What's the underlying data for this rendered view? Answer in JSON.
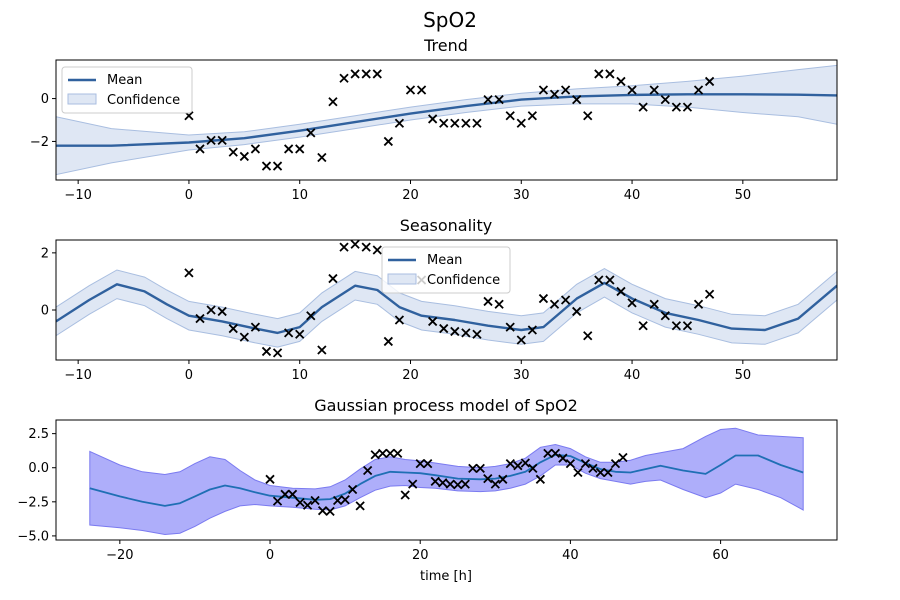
{
  "suptitle": "SpO2",
  "chart_data": [
    {
      "type": "line",
      "title": "Trend",
      "xlabel": "",
      "ylabel": "",
      "xlim": [
        -12,
        58.5
      ],
      "ylim": [
        -3.8,
        1.8
      ],
      "xticks": [
        -10,
        0,
        10,
        20,
        30,
        40,
        50
      ],
      "yticks": [
        -2,
        0
      ],
      "legend": {
        "position": "upper-left",
        "entries": [
          "Mean",
          "Confidence"
        ]
      },
      "grid": false,
      "colors": {
        "mean": "#30619e",
        "band_fill": "#dfe7f4",
        "band_edge": "#a9bee0",
        "points": "#000000"
      },
      "mean": {
        "x": [
          -12,
          -7,
          0,
          5,
          10,
          15,
          20,
          25,
          30,
          35,
          40,
          45,
          50,
          55,
          58.5
        ],
        "y": [
          -2.2,
          -2.2,
          -2.05,
          -1.85,
          -1.5,
          -1.1,
          -0.7,
          -0.35,
          -0.05,
          0.1,
          0.17,
          0.2,
          0.2,
          0.18,
          0.15
        ]
      },
      "band_upper": {
        "x": [
          -12,
          -7,
          0,
          5,
          10,
          15,
          20,
          25,
          30,
          35,
          40,
          45,
          50,
          55,
          58.5
        ],
        "y": [
          -0.85,
          -1.4,
          -1.7,
          -1.55,
          -1.2,
          -0.8,
          -0.4,
          -0.05,
          0.25,
          0.45,
          0.6,
          0.8,
          1.05,
          1.35,
          1.55
        ]
      },
      "band_lower": {
        "x": [
          -12,
          -7,
          0,
          5,
          10,
          15,
          20,
          25,
          30,
          35,
          40,
          45,
          50,
          55,
          58.5
        ],
        "y": [
          -3.55,
          -3.0,
          -2.4,
          -2.15,
          -1.8,
          -1.4,
          -1.0,
          -0.65,
          -0.35,
          -0.25,
          -0.25,
          -0.4,
          -0.65,
          -0.85,
          -1.2
        ]
      },
      "points": {
        "x": [
          0,
          1,
          2,
          3,
          4,
          5,
          6,
          7,
          8,
          9,
          10,
          11,
          12,
          13,
          14,
          15,
          16,
          17,
          18,
          19,
          20,
          21,
          22,
          23,
          24,
          25,
          26,
          27,
          28,
          29,
          30,
          31,
          32,
          33,
          34,
          35,
          36,
          37,
          38,
          39,
          40,
          41,
          42,
          43,
          44,
          45,
          46,
          47
        ],
        "y": [
          -0.8,
          -2.35,
          -1.95,
          -1.95,
          -2.5,
          -2.7,
          -2.35,
          -3.15,
          -3.15,
          -2.35,
          -2.35,
          -1.6,
          -2.75,
          -0.15,
          0.95,
          1.15,
          1.15,
          1.15,
          -2.0,
          -1.15,
          0.4,
          0.4,
          -0.95,
          -1.15,
          -1.15,
          -1.15,
          -1.15,
          -0.05,
          -0.05,
          -0.8,
          -1.15,
          -0.8,
          0.4,
          0.2,
          0.4,
          -0.05,
          -0.8,
          1.15,
          1.15,
          0.8,
          0.4,
          -0.4,
          0.4,
          -0.05,
          -0.4,
          -0.4,
          0.4,
          0.8
        ]
      }
    },
    {
      "type": "line",
      "title": "Seasonality",
      "xlabel": "",
      "ylabel": "",
      "xlim": [
        -12,
        58.5
      ],
      "ylim": [
        -1.75,
        2.45
      ],
      "xticks": [
        -10,
        0,
        10,
        20,
        30,
        40,
        50
      ],
      "yticks": [
        0,
        2
      ],
      "legend": {
        "position": "upper-center",
        "entries": [
          "Mean",
          "Confidence"
        ]
      },
      "grid": false,
      "colors": {
        "mean": "#30619e",
        "band_fill": "#dfe7f4",
        "band_edge": "#a9bee0",
        "points": "#000000"
      },
      "mean": {
        "x": [
          -12,
          -9,
          -6.5,
          -4,
          -2,
          0,
          3,
          6,
          8,
          10,
          12,
          15,
          17,
          19,
          21,
          24,
          27,
          30,
          32,
          35,
          37.5,
          40,
          43,
          46,
          49,
          52,
          55,
          58.5
        ],
        "y": [
          -0.4,
          0.35,
          0.9,
          0.65,
          0.2,
          -0.2,
          -0.4,
          -0.65,
          -0.8,
          -0.6,
          0.1,
          0.85,
          0.7,
          0.1,
          -0.2,
          -0.35,
          -0.55,
          -0.7,
          -0.6,
          0.4,
          0.95,
          0.4,
          -0.1,
          -0.35,
          -0.65,
          -0.7,
          -0.3,
          0.85
        ]
      },
      "band_halfwidth": 0.5,
      "points": {
        "x": [
          0,
          1,
          2,
          3,
          4,
          5,
          6,
          7,
          8,
          9,
          10,
          11,
          12,
          13,
          14,
          15,
          16,
          17,
          18,
          19,
          20,
          21,
          22,
          23,
          24,
          25,
          26,
          27,
          28,
          29,
          30,
          31,
          32,
          33,
          34,
          35,
          36,
          37,
          38,
          39,
          40,
          41,
          42,
          43,
          44,
          45,
          46,
          47
        ],
        "y": [
          1.3,
          -0.3,
          0.0,
          -0.05,
          -0.65,
          -0.95,
          -0.6,
          -1.45,
          -1.5,
          -0.8,
          -0.85,
          -0.2,
          -1.4,
          1.1,
          2.2,
          2.3,
          2.2,
          2.1,
          -1.1,
          -0.35,
          1.05,
          1.05,
          -0.4,
          -0.65,
          -0.75,
          -0.8,
          -0.85,
          0.3,
          0.2,
          -0.6,
          -1.05,
          -0.7,
          0.4,
          0.2,
          0.35,
          -0.05,
          -0.9,
          1.05,
          1.05,
          0.65,
          0.25,
          -0.55,
          0.2,
          -0.2,
          -0.55,
          -0.55,
          0.2,
          0.55
        ]
      }
    },
    {
      "type": "line",
      "title": "Gaussian process model of SpO2",
      "xlabel": "time [h]",
      "ylabel": "",
      "xlim": [
        -28.5,
        75.5
      ],
      "ylim": [
        -5.3,
        3.5
      ],
      "xticks": [
        -20,
        0,
        20,
        40,
        60
      ],
      "yticks": [
        -5.0,
        -2.5,
        0.0,
        2.5
      ],
      "ytick_labels": [
        "−5.0",
        "−2.5",
        "0.0",
        "2.5"
      ],
      "legend": null,
      "grid": false,
      "colors": {
        "mean": "#1f6fb4",
        "band_fill": "#aeaefa",
        "band_edge": "#7a7af0",
        "points": "#000000"
      },
      "mean": {
        "x": [
          -24,
          -20,
          -17,
          -14,
          -12,
          -10,
          -8,
          -6,
          -4,
          -2,
          0,
          3,
          6,
          8,
          10,
          12,
          14,
          16,
          18,
          20,
          22,
          25,
          28,
          30,
          32,
          34,
          36,
          38,
          40,
          42,
          44,
          46,
          48,
          50,
          52,
          55,
          58,
          60,
          62,
          65,
          68,
          71
        ],
        "y": [
          -1.5,
          -2.1,
          -2.5,
          -2.8,
          -2.6,
          -2.1,
          -1.6,
          -1.3,
          -1.5,
          -1.8,
          -2.05,
          -2.2,
          -2.35,
          -2.3,
          -1.9,
          -1.2,
          -0.6,
          -0.3,
          -0.35,
          -0.4,
          -0.55,
          -0.8,
          -0.85,
          -0.8,
          -0.6,
          -0.3,
          0.4,
          0.95,
          0.85,
          0.35,
          -0.1,
          -0.3,
          -0.35,
          -0.1,
          0.15,
          -0.2,
          -0.45,
          0.2,
          0.9,
          0.9,
          0.2,
          -0.35
        ]
      },
      "band_upper": {
        "x": [
          -24,
          -20,
          -17,
          -14,
          -12,
          -10,
          -8,
          -6,
          -4,
          -2,
          0,
          3,
          6,
          8,
          10,
          12,
          14,
          16,
          18,
          20,
          22,
          25,
          28,
          30,
          32,
          34,
          36,
          38,
          40,
          42,
          44,
          46,
          48,
          50,
          52,
          55,
          58,
          60,
          62,
          65,
          68,
          71
        ],
        "y": [
          1.2,
          0.2,
          -0.3,
          -0.5,
          -0.3,
          0.3,
          0.8,
          0.6,
          -0.2,
          -0.9,
          -1.3,
          -1.5,
          -1.55,
          -1.4,
          -0.9,
          -0.1,
          0.6,
          0.8,
          0.6,
          0.5,
          0.35,
          0.1,
          0.0,
          0.1,
          0.3,
          0.7,
          1.5,
          1.7,
          1.4,
          0.8,
          0.4,
          0.4,
          0.55,
          0.9,
          1.1,
          1.4,
          2.3,
          2.8,
          2.9,
          2.4,
          2.3,
          2.2
        ]
      },
      "band_lower": {
        "x": [
          -24,
          -20,
          -17,
          -14,
          -12,
          -10,
          -8,
          -6,
          -4,
          -2,
          0,
          3,
          6,
          8,
          10,
          12,
          14,
          16,
          18,
          20,
          22,
          25,
          28,
          30,
          32,
          34,
          36,
          38,
          40,
          42,
          44,
          46,
          48,
          50,
          52,
          55,
          58,
          60,
          62,
          65,
          68,
          71
        ],
        "y": [
          -4.2,
          -4.4,
          -4.6,
          -4.9,
          -4.8,
          -4.3,
          -3.7,
          -3.2,
          -2.8,
          -2.7,
          -2.8,
          -2.9,
          -3.05,
          -3.1,
          -2.8,
          -2.2,
          -1.65,
          -1.35,
          -1.3,
          -1.45,
          -1.5,
          -1.7,
          -1.75,
          -1.7,
          -1.5,
          -1.2,
          -0.6,
          0.2,
          0.2,
          -0.4,
          -0.8,
          -1.0,
          -1.2,
          -1.0,
          -0.9,
          -1.6,
          -2.2,
          -1.85,
          -1.2,
          -1.6,
          -2.2,
          -3.1
        ]
      },
      "points": {
        "x": [
          0,
          1,
          2,
          3,
          4,
          5,
          6,
          7,
          8,
          9,
          10,
          11,
          12,
          13,
          14,
          15,
          16,
          17,
          18,
          19,
          20,
          21,
          22,
          23,
          24,
          25,
          26,
          27,
          28,
          29,
          30,
          31,
          32,
          33,
          34,
          35,
          36,
          37,
          38,
          39,
          40,
          41,
          42,
          43,
          44,
          45,
          46,
          47
        ],
        "y": [
          -0.85,
          -2.45,
          -1.95,
          -1.95,
          -2.55,
          -2.75,
          -2.4,
          -3.15,
          -3.2,
          -2.4,
          -2.35,
          -1.6,
          -2.8,
          -0.2,
          0.95,
          1.05,
          1.05,
          1.05,
          -2.0,
          -1.2,
          0.3,
          0.3,
          -1.0,
          -1.1,
          -1.2,
          -1.25,
          -1.2,
          -0.05,
          -0.05,
          -0.8,
          -1.2,
          -0.85,
          0.3,
          0.15,
          0.35,
          -0.05,
          -0.85,
          1.05,
          1.05,
          0.7,
          0.3,
          -0.35,
          0.3,
          -0.05,
          -0.35,
          -0.35,
          0.3,
          0.75
        ]
      }
    }
  ]
}
